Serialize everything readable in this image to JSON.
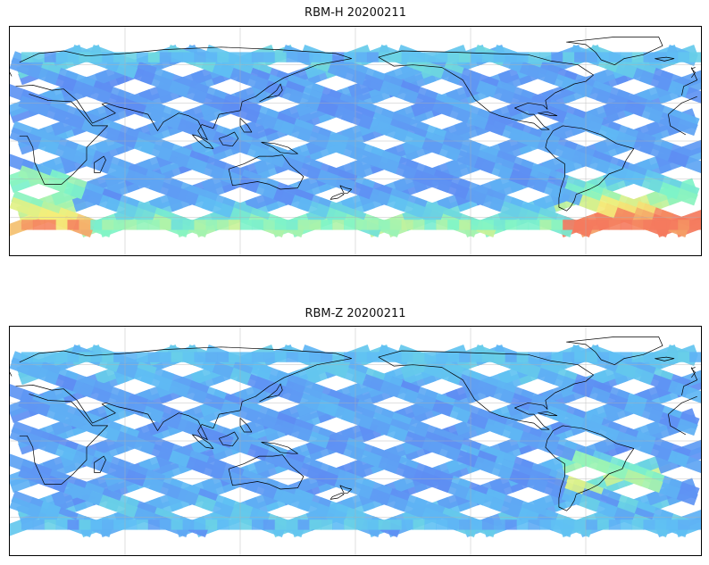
{
  "panels": [
    {
      "title": "RBM-H 20200211",
      "variable": "RBM-H",
      "date": "20200211"
    },
    {
      "title": "RBM-Z 20200211",
      "variable": "RBM-Z",
      "date": "20200211"
    }
  ],
  "map": {
    "projection": "PlateCarree",
    "central_longitude": 180,
    "extent_lon": [
      -180,
      180
    ],
    "extent_lat": [
      -90,
      90
    ],
    "data_lat_range": [
      -70,
      70
    ],
    "gridlines": true,
    "gridline_lon_step": 60,
    "gridline_lat_step": 30,
    "coastlines": true,
    "colormap": "jet"
  },
  "colors": {
    "low": "#5e5ef2",
    "mid_low": "#5fbff5",
    "mid": "#7ff5c8",
    "mid_high": "#f5f07a",
    "high": "#f57a5e",
    "coastline": "#000000",
    "grid": "#b0b0b0"
  }
}
